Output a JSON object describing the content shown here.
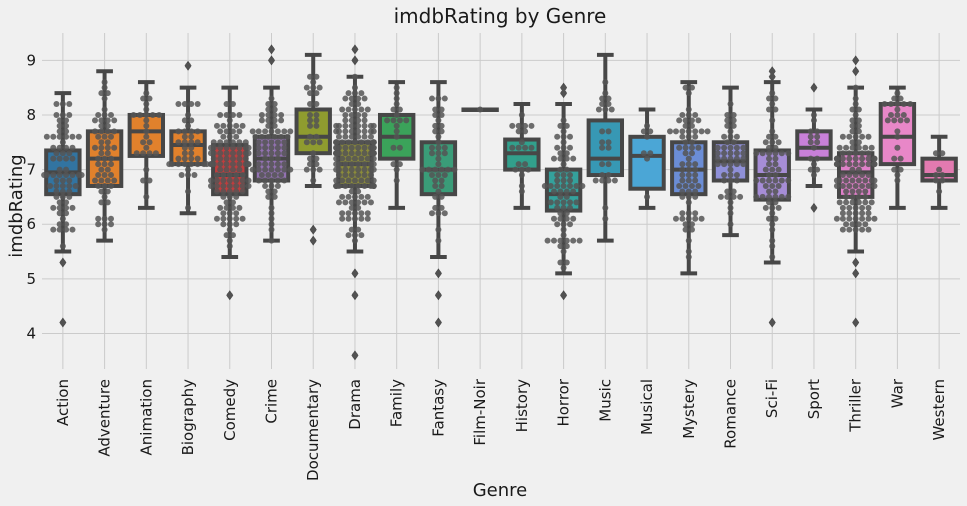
{
  "chart_data": {
    "type": "box",
    "title": "imdbRating by Genre",
    "xlabel": "Genre",
    "ylabel": "imdbRating",
    "ylim": [
      3.35,
      9.5
    ],
    "yticks": [
      4,
      5,
      6,
      7,
      8,
      9
    ],
    "grid": true,
    "overlay": "swarm",
    "categories": [
      "Action",
      "Adventure",
      "Animation",
      "Biography",
      "Comedy",
      "Crime",
      "Documentary",
      "Drama",
      "Family",
      "Fantasy",
      "Film-Noir",
      "History",
      "Horror",
      "Music",
      "Musical",
      "Mystery",
      "Romance",
      "Sci-Fi",
      "Sport",
      "Thriller",
      "War",
      "Western"
    ],
    "series": [
      {
        "category": "Action",
        "q1": 6.55,
        "median": 6.95,
        "q3": 7.35,
        "whisker_low": 5.5,
        "whisker_high": 8.4,
        "outliers": [
          4.2,
          5.3
        ],
        "n": 70,
        "color": "#3274a1"
      },
      {
        "category": "Adventure",
        "q1": 6.7,
        "median": 7.2,
        "q3": 7.7,
        "whisker_low": 5.7,
        "whisker_high": 8.8,
        "outliers": [],
        "n": 60,
        "color": "#e1812c"
      },
      {
        "category": "Animation",
        "q1": 7.25,
        "median": 7.7,
        "q3": 8.0,
        "whisker_low": 6.3,
        "whisker_high": 8.6,
        "outliers": [],
        "n": 25,
        "color": "#e1812c"
      },
      {
        "category": "Biography",
        "q1": 7.1,
        "median": 7.45,
        "q3": 7.7,
        "whisker_low": 6.2,
        "whisker_high": 8.5,
        "outliers": [
          8.9
        ],
        "n": 40,
        "color": "#e1812c"
      },
      {
        "category": "Comedy",
        "q1": 6.55,
        "median": 6.9,
        "q3": 7.45,
        "whisker_low": 5.4,
        "whisker_high": 8.5,
        "outliers": [
          4.7
        ],
        "n": 110,
        "color": "#c03d3e"
      },
      {
        "category": "Crime",
        "q1": 6.8,
        "median": 7.2,
        "q3": 7.6,
        "whisker_low": 5.7,
        "whisker_high": 8.5,
        "outliers": [
          9.0,
          9.2
        ],
        "n": 80,
        "color": "#9372b2"
      },
      {
        "category": "Documentary",
        "q1": 7.3,
        "median": 7.6,
        "q3": 8.1,
        "whisker_low": 6.7,
        "whisker_high": 9.1,
        "outliers": [
          5.7,
          5.9
        ],
        "n": 30,
        "color": "#8f9c2f"
      },
      {
        "category": "Drama",
        "q1": 6.7,
        "median": 7.1,
        "q3": 7.5,
        "whisker_low": 5.5,
        "whisker_high": 8.7,
        "outliers": [
          3.6,
          4.7,
          5.1,
          9.0,
          9.2
        ],
        "n": 160,
        "color": "#8c8c3a"
      },
      {
        "category": "Family",
        "q1": 7.2,
        "median": 7.6,
        "q3": 8.0,
        "whisker_low": 6.3,
        "whisker_high": 8.6,
        "outliers": [],
        "n": 20,
        "color": "#3ba35a"
      },
      {
        "category": "Fantasy",
        "q1": 6.55,
        "median": 7.0,
        "q3": 7.5,
        "whisker_low": 5.4,
        "whisker_high": 8.6,
        "outliers": [
          4.2,
          4.7,
          5.1
        ],
        "n": 45,
        "color": "#3a9c78"
      },
      {
        "category": "Film-Noir",
        "q1": 8.1,
        "median": 8.1,
        "q3": 8.1,
        "whisker_low": 8.1,
        "whisker_high": 8.1,
        "outliers": [],
        "n": 1,
        "color": "#2ea27a"
      },
      {
        "category": "History",
        "q1": 7.0,
        "median": 7.3,
        "q3": 7.55,
        "whisker_low": 6.3,
        "whisker_high": 8.2,
        "outliers": [],
        "n": 20,
        "color": "#32a08c"
      },
      {
        "category": "Horror",
        "q1": 6.25,
        "median": 6.55,
        "q3": 7.0,
        "whisker_low": 5.1,
        "whisker_high": 8.2,
        "outliers": [
          4.7,
          8.4,
          8.5
        ],
        "n": 70,
        "color": "#34a19c"
      },
      {
        "category": "Music",
        "q1": 6.9,
        "median": 7.2,
        "q3": 7.9,
        "whisker_low": 5.7,
        "whisker_high": 9.1,
        "outliers": [],
        "n": 25,
        "color": "#3798b4"
      },
      {
        "category": "Musical",
        "q1": 6.65,
        "median": 7.25,
        "q3": 7.6,
        "whisker_low": 6.3,
        "whisker_high": 8.1,
        "outliers": [],
        "n": 8,
        "color": "#4ba6d6"
      },
      {
        "category": "Mystery",
        "q1": 6.55,
        "median": 7.0,
        "q3": 7.5,
        "whisker_low": 5.1,
        "whisker_high": 8.6,
        "outliers": [],
        "n": 70,
        "color": "#6b8dd6"
      },
      {
        "category": "Romance",
        "q1": 6.8,
        "median": 7.15,
        "q3": 7.5,
        "whisker_low": 5.8,
        "whisker_high": 8.5,
        "outliers": [],
        "n": 50,
        "color": "#8f90d8"
      },
      {
        "category": "Sci-Fi",
        "q1": 6.45,
        "median": 6.9,
        "q3": 7.35,
        "whisker_low": 5.3,
        "whisker_high": 8.6,
        "outliers": [
          4.2,
          8.7,
          8.8
        ],
        "n": 60,
        "color": "#a68dd6"
      },
      {
        "category": "Sport",
        "q1": 7.2,
        "median": 7.4,
        "q3": 7.7,
        "whisker_low": 6.7,
        "whisker_high": 8.1,
        "outliers": [
          6.3,
          8.5
        ],
        "n": 15,
        "color": "#c880d8"
      },
      {
        "category": "Thriller",
        "q1": 6.5,
        "median": 6.95,
        "q3": 7.3,
        "whisker_low": 5.5,
        "whisker_high": 8.5,
        "outliers": [
          4.2,
          5.1,
          5.3,
          8.8,
          9.0
        ],
        "n": 110,
        "color": "#df80c9"
      },
      {
        "category": "War",
        "q1": 7.1,
        "median": 7.6,
        "q3": 8.2,
        "whisker_low": 6.3,
        "whisker_high": 8.5,
        "outliers": [],
        "n": 25,
        "color": "#e887c8"
      },
      {
        "category": "Western",
        "q1": 6.8,
        "median": 6.9,
        "q3": 7.2,
        "whisker_low": 6.3,
        "whisker_high": 7.6,
        "outliers": [],
        "n": 8,
        "color": "#e27ab0"
      }
    ]
  }
}
